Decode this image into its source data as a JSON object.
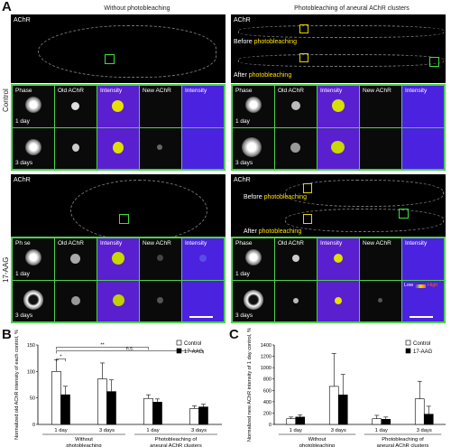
{
  "panels": {
    "A": {
      "letter": "A",
      "col_left_title": "Without photobleaching",
      "col_right_title": "Photobleaching of aneural AChR clusters",
      "row_top_label": "Control",
      "row_bottom_label": "17-AAG",
      "overview_label": "AChR",
      "before_prefix": "Before ",
      "before_highlight": "photobleaching",
      "after_prefix": "After ",
      "after_highlight": "photobleaching",
      "cell_headers": [
        "Phase",
        "Old AChR",
        "Intensity",
        "New AChR",
        "Intensity"
      ],
      "cell_headers_bottom_left": [
        "Phase",
        "Old AChR",
        "Intensity",
        "New AChR",
        "Intensity"
      ],
      "time_labels": [
        "1 day",
        "3 days"
      ],
      "intensity_scale_low": "Low",
      "intensity_scale_high": "High",
      "phase_overlap_label": "Ph se"
    },
    "B": {
      "letter": "B",
      "chart_data": {
        "type": "bar",
        "ylabel": "Normalized old AChR intensity of each control, %",
        "ylim": [
          0,
          150
        ],
        "yticks": [
          0,
          50,
          100,
          150
        ],
        "categories": [
          "1 day",
          "3 days",
          "1 day",
          "3 days"
        ],
        "groups": [
          "Without photobleaching",
          "Photobleaching of aneural AChR clusters"
        ],
        "series": [
          {
            "name": "Control",
            "values": [
              100,
              86,
              49,
              30
            ],
            "errors": [
              22,
              30,
              7,
              5
            ]
          },
          {
            "name": "17-AAG",
            "values": [
              56,
              62,
              42,
              33
            ],
            "errors": [
              16,
              22,
              6,
              5
            ]
          }
        ],
        "legend_placement": "top-right",
        "significance": [
          {
            "label": "*",
            "from": 0,
            "to": 1
          },
          {
            "label": "n.s.",
            "from": 0,
            "to": 6
          },
          {
            "label": "**",
            "from": 0,
            "to": 4
          }
        ],
        "group_labels": [
          "Without photobleaching",
          "Photobleaching of aneural AChR clusters"
        ]
      }
    },
    "C": {
      "letter": "C",
      "chart_data": {
        "type": "bar",
        "ylabel": "Normalized new AChR intensity of 1 day control, %",
        "ylim": [
          0,
          1400
        ],
        "yticks": [
          0,
          200,
          400,
          600,
          800,
          1000,
          1200,
          1400
        ],
        "categories": [
          "1 day",
          "3 days",
          "1 day",
          "3 days"
        ],
        "series": [
          {
            "name": "Control",
            "values": [
              100,
              670,
              100,
              450
            ],
            "errors": [
              30,
              580,
              60,
              310
            ]
          },
          {
            "name": "17-AAG",
            "values": [
              130,
              520,
              90,
              180
            ],
            "errors": [
              40,
              360,
              40,
              140
            ]
          }
        ],
        "legend_placement": "top-right",
        "group_labels": [
          "Without photobleaching",
          "Photobleaching of aneural AChR clusters"
        ]
      }
    }
  }
}
